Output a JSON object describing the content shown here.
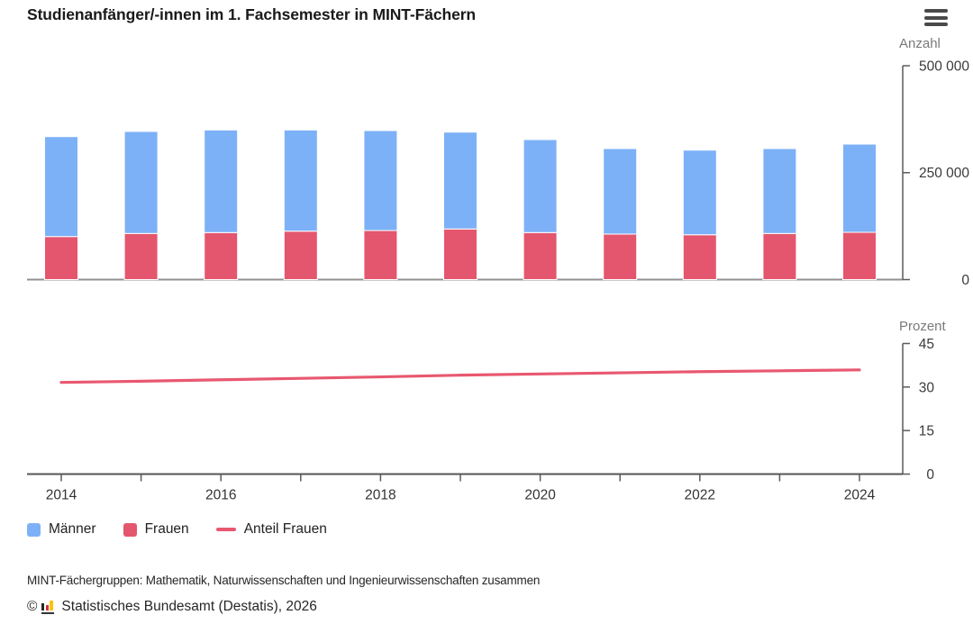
{
  "header": {
    "title": "Studienanfänger/-innen im 1. Fachsemester in MINT-Fächern"
  },
  "menu": {
    "icon": "hamburger-menu-icon"
  },
  "chart_data": [
    {
      "type": "bar",
      "panel": "top",
      "stacked": true,
      "ylabel": "Anzahl",
      "ylim": [
        0,
        500000
      ],
      "yticks": [
        {
          "value": 0,
          "label": "0"
        },
        {
          "value": 250000,
          "label": "250 000"
        },
        {
          "value": 500000,
          "label": "500 000"
        }
      ],
      "categories": [
        2014,
        2015,
        2016,
        2017,
        2018,
        2019,
        2020,
        2021,
        2022,
        2023,
        2024
      ],
      "series": [
        {
          "name": "Frauen",
          "color": "#e4566d",
          "values": [
            100600,
            107800,
            109900,
            113200,
            114700,
            118300,
            109900,
            106300,
            104800,
            107800,
            110500
          ]
        },
        {
          "name": "Männer",
          "color": "#7db1f7",
          "values": [
            233700,
            238500,
            239900,
            236600,
            233700,
            226500,
            217400,
            200000,
            197900,
            198500,
            206300
          ]
        }
      ],
      "grid": false,
      "axis_side": "right",
      "legend_position": "bottom"
    },
    {
      "type": "line",
      "panel": "bottom",
      "ylabel": "Prozent",
      "ylim": [
        0,
        45
      ],
      "yticks": [
        {
          "value": 0,
          "label": "0"
        },
        {
          "value": 15,
          "label": "15"
        },
        {
          "value": 30,
          "label": "30"
        },
        {
          "value": 45,
          "label": "45"
        }
      ],
      "x": [
        2014,
        2015,
        2016,
        2017,
        2018,
        2019,
        2020,
        2021,
        2022,
        2023,
        2024
      ],
      "xtick_labels": [
        "2014",
        "2016",
        "2018",
        "2020",
        "2022",
        "2024"
      ],
      "series": [
        {
          "name": "Anteil Frauen",
          "color": "#e8586f",
          "values": [
            31.6,
            32.0,
            32.5,
            33.0,
            33.5,
            34.1,
            34.5,
            34.9,
            35.3,
            35.6,
            35.9
          ]
        }
      ],
      "grid": false,
      "axis_side": "right"
    }
  ],
  "legend": {
    "items": [
      {
        "label": "Männer",
        "symbol": "square",
        "color": "#7db1f7"
      },
      {
        "label": "Frauen",
        "symbol": "square",
        "color": "#e4566d"
      },
      {
        "label": "Anteil Frauen",
        "symbol": "line",
        "color": "#e8586f"
      }
    ]
  },
  "footnote": "MINT-Fächergruppen: Mathematik, Naturwissenschaften und Ingenieurwissenschaften zusammen",
  "copyright": {
    "symbol": "©",
    "logo": "destatis-logo-icon",
    "logo_colors": [
      "#262626",
      "#cf3341",
      "#fdc300"
    ],
    "text": "Statistisches Bundesamt (Destatis), 2026"
  }
}
